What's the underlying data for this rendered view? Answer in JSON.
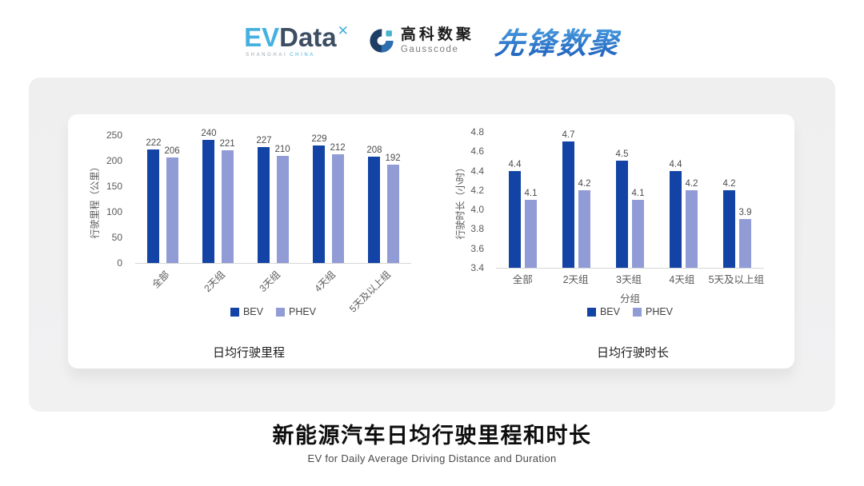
{
  "header": {
    "evdata": {
      "ev": "EV",
      "data": "Data",
      "mark": "✕",
      "tagline_left": "SHANGHAI",
      "tagline_right": "CHINA"
    },
    "gausscode": {
      "cn": "高科数聚",
      "en": "Gausscode"
    },
    "xianfeng": "先锋数聚"
  },
  "brand": {
    "evdata-blue": "#45b1e0",
    "evdata-dark": "#3d4e63",
    "gc-navy": "#1d3e66",
    "gc-blue": "#2e6fb2",
    "gc-teal": "#45b5cd",
    "xf-light": "#52a9e6",
    "xf-dark": "#1f61bd"
  },
  "chart_data": [
    {
      "type": "bar",
      "title": "日均行驶里程",
      "ylabel": "行驶里程（公里）",
      "xlabel": "",
      "categories": [
        "全部",
        "2天组",
        "3天组",
        "4天组",
        "5天及以上组"
      ],
      "series": [
        {
          "name": "BEV",
          "color": "#1243a5",
          "values": [
            222,
            240,
            227,
            229,
            208
          ]
        },
        {
          "name": "PHEV",
          "color": "#919cd6",
          "values": [
            206,
            221,
            210,
            212,
            192
          ]
        }
      ],
      "ylim": [
        0,
        250
      ],
      "yticks": [
        0,
        50,
        100,
        150,
        200,
        250
      ],
      "tick_decimals": 0,
      "label_decimals": 0,
      "xtick_rotation": 45,
      "grid": false,
      "legend_position": "bottom"
    },
    {
      "type": "bar",
      "title": "日均行驶时长",
      "ylabel": "行驶时长（小时）",
      "xlabel": "分组",
      "categories": [
        "全部",
        "2天组",
        "3天组",
        "4天组",
        "5天及以上组"
      ],
      "series": [
        {
          "name": "BEV",
          "color": "#1243a5",
          "values": [
            4.4,
            4.7,
            4.5,
            4.4,
            4.2
          ]
        },
        {
          "name": "PHEV",
          "color": "#919cd6",
          "values": [
            4.1,
            4.2,
            4.1,
            4.2,
            3.9
          ]
        }
      ],
      "ylim": [
        3.4,
        4.8
      ],
      "yticks": [
        3.4,
        3.6,
        3.8,
        4.0,
        4.2,
        4.4,
        4.6,
        4.8
      ],
      "tick_decimals": 1,
      "label_decimals": 1,
      "xtick_rotation": 0,
      "grid": false,
      "legend_position": "bottom"
    }
  ],
  "footer": {
    "title": "新能源汽车日均行驶里程和时长",
    "subtitle": "EV for Daily Average Driving Distance and Duration"
  }
}
